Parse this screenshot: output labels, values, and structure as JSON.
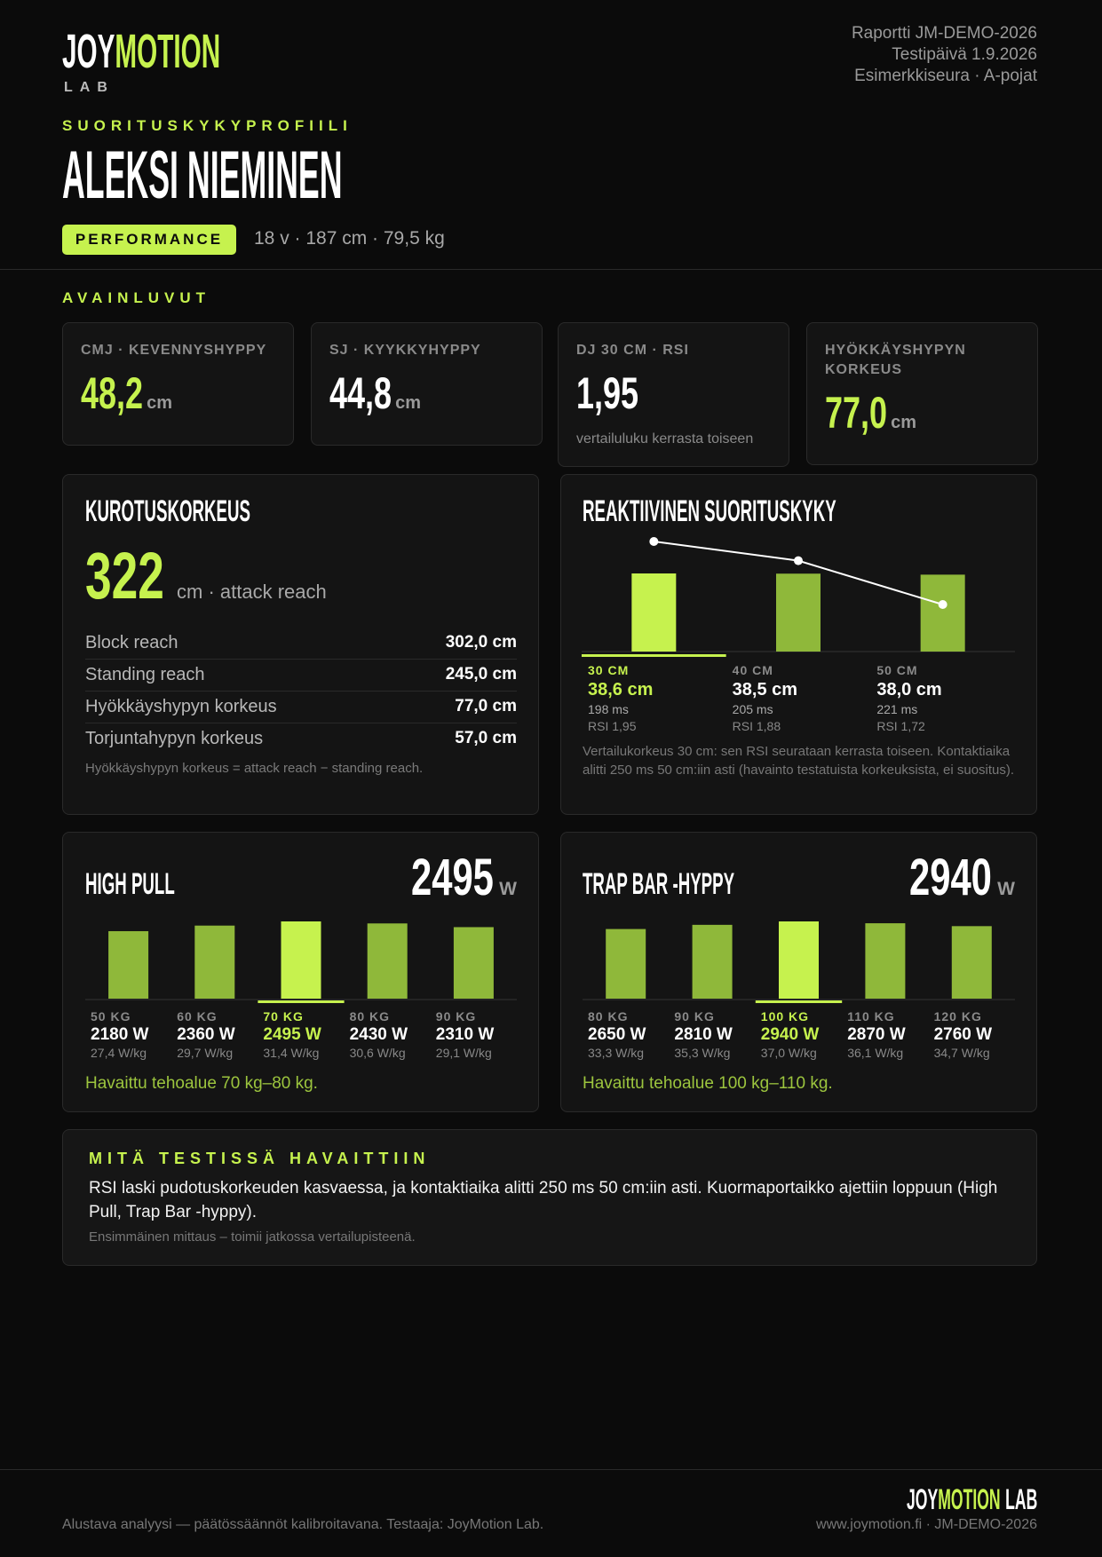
{
  "header": {
    "logo": {
      "joy": "JOY",
      "motion": "MOTION",
      "lab": "LAB"
    },
    "report_lines": [
      "Raportti JM-DEMO-2026",
      "Testipäivä 1.9.2026",
      "Esimerkkiseura · A-pojat"
    ],
    "kicker": "SUORITUSKYKYPROFIILI",
    "athlete": "ALEKSI NIEMINEN",
    "badge": "PERFORMANCE",
    "meta": "18 v · 187 cm · 79,5 kg"
  },
  "key_figures": {
    "title": "AVAINLUVUT",
    "cards": [
      {
        "label": "CMJ · KEVENNYSHYPPY",
        "value": "48,2",
        "unit": "cm",
        "accent": true
      },
      {
        "label": "SJ · KYYKKYHYPPY",
        "value": "44,8",
        "unit": "cm",
        "accent": false
      },
      {
        "label": "DJ 30 CM · RSI",
        "value": "1,95",
        "note": "vertailuluku kerrasta toiseen",
        "accent": false
      },
      {
        "label": "HYÖKKÄYSHYPYN KORKEUS",
        "value": "77,0",
        "unit": "cm",
        "accent": true
      }
    ]
  },
  "reach": {
    "title": "KUROTUSKORKEUS",
    "value": "322",
    "unit": "cm · attack reach",
    "rows": [
      [
        "Block reach",
        "302,0 cm"
      ],
      [
        "Standing reach",
        "245,0 cm"
      ],
      [
        "Hyökkäyshypyn korkeus",
        "77,0 cm"
      ],
      [
        "Torjuntahypyn korkeus",
        "57,0 cm"
      ]
    ],
    "note": "Hyökkäyshypyn korkeus = attack reach − standing reach."
  },
  "chart_data": [
    {
      "type": "bar_line",
      "title": "REAKTIIVINEN SUORITUSKYKY",
      "categories": [
        "30 CM",
        "40 CM",
        "50 CM"
      ],
      "bars": {
        "values": [
          38.6,
          38.5,
          38.0
        ],
        "value_labels": [
          "38,6 cm",
          "38,5 cm",
          "38,0 cm"
        ],
        "color": "#8fb83a",
        "highlight_color": "#c6f24e"
      },
      "line": {
        "values": [
          1.95,
          1.88,
          1.72
        ],
        "value_labels": [
          "RSI 1,95",
          "RSI 1,88",
          "RSI 1,72"
        ],
        "color": "#ffffff"
      },
      "contact_labels": [
        "198 ms",
        "205 ms",
        "221 ms"
      ],
      "note": "Vertailukorkeus 30 cm: sen RSI seurataan kerrasta toiseen. Kontaktiaika alitti 250 ms 50 cm:iin asti (havainto testatuista korkeuksista, ei suositus)."
    },
    {
      "type": "bar",
      "title": "HIGH PULL",
      "peak": "2495",
      "peak_unit": "W",
      "categories": [
        "50 KG",
        "60 KG",
        "70 KG",
        "80 KG",
        "90 KG"
      ],
      "values": [
        2180,
        2360,
        2495,
        2430,
        2310
      ],
      "value_labels": [
        "2180 W",
        "2360 W",
        "2495 W",
        "2430 W",
        "2310 W"
      ],
      "per_kg_labels": [
        "27,4 W/kg",
        "29,7 W/kg",
        "31,4 W/kg",
        "30,6 W/kg",
        "29,1 W/kg"
      ],
      "color": "#8fb83a",
      "highlight_color": "#c6f24e",
      "note": "Havaittu tehoalue 70 kg–80 kg."
    },
    {
      "type": "bar",
      "title": "TRAP BAR -HYPPY",
      "peak": "2940",
      "peak_unit": "W",
      "categories": [
        "80 KG",
        "90 KG",
        "100 KG",
        "110 KG",
        "120 KG"
      ],
      "values": [
        2650,
        2810,
        2940,
        2870,
        2760
      ],
      "value_labels": [
        "2650 W",
        "2810 W",
        "2940 W",
        "2870 W",
        "2760 W"
      ],
      "per_kg_labels": [
        "33,3 W/kg",
        "35,3 W/kg",
        "37,0 W/kg",
        "36,1 W/kg",
        "34,7 W/kg"
      ],
      "color": "#8fb83a",
      "highlight_color": "#c6f24e",
      "note": "Havaittu tehoalue 100 kg–110 kg."
    }
  ],
  "findings": {
    "title": "MITÄ TESTISSÄ HAVAITTIIN",
    "text": "RSI laski pudotuskorkeuden kasvaessa, ja kontaktiaika alitti 250 ms 50 cm:iin asti. Kuormaportaikko ajettiin loppuun (High Pull, Trap Bar -hyppy).",
    "note": "Ensimmäinen mittaus – toimii jatkossa vertailupisteenä."
  },
  "footer": {
    "logo": {
      "joy": "JOY",
      "motion": "MOTION",
      "lab": "LAB"
    },
    "left": "Alustava analyysi — päätössäännöt kalibroitavana. Testaaja: JoyMotion Lab.",
    "right": "www.joymotion.fi · JM-DEMO-2026"
  }
}
